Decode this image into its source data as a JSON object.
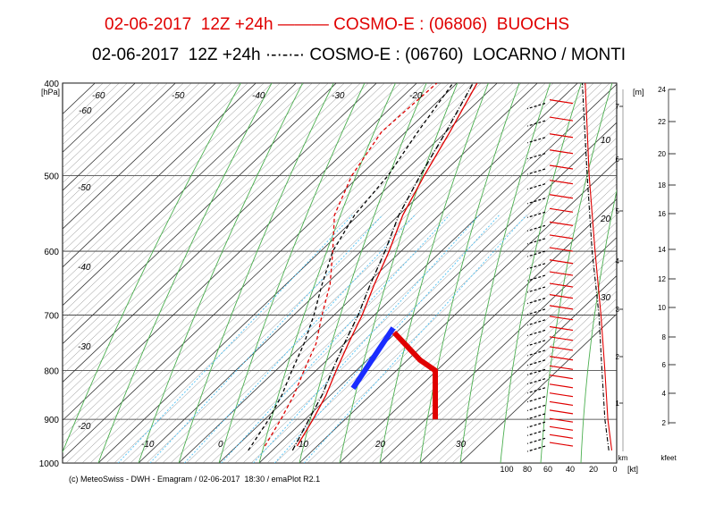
{
  "titles": {
    "line1": "02-06-2017  12Z +24h ——— COSMO-E : (06806)  BUOCHS",
    "line2": "02-06-2017  12Z +24h ·-·-·-· COSMO-E : (06760)  LOCARNO / MONTI"
  },
  "footer": "(c) MeteoSwiss - DWH - Emagram / 02-06-2017  18:30 / emaPlot R2.1",
  "colors": {
    "buochs": "#e00000",
    "locarno": "#000000",
    "dry_adiabat": "#4caf50",
    "mixing_ratio": "#4fc3f7",
    "isotherm": "#666666",
    "blue_arrow": "#1a2cff"
  },
  "chart_data": {
    "type": "line",
    "title": "Emagram",
    "y_axis": {
      "unit": "[hPa]",
      "scale": "log",
      "range": [
        1000,
        400
      ],
      "ticks": [
        "400",
        "500",
        "600",
        "700",
        "800",
        "900",
        "1000"
      ]
    },
    "x_axis": {
      "temperature_labels": [
        "-60",
        "-60",
        "-50",
        "-40",
        "-30",
        "-20",
        "-50",
        "-40",
        "-30",
        "-20",
        "-10",
        "0",
        "10",
        "20",
        "30",
        "10",
        "20",
        "30"
      ],
      "wind_unit": "[kt]",
      "wind_ticks": [
        "100",
        "80",
        "60",
        "40",
        "20",
        "0"
      ]
    },
    "height_km": {
      "unit": "[m]",
      "axis_label": "km",
      "ticks": [
        "1",
        "2",
        "3",
        "4",
        "5",
        "6",
        "7"
      ]
    },
    "height_kfeet": {
      "unit": "kfeet",
      "ticks": [
        "2",
        "4",
        "6",
        "8",
        "10",
        "12",
        "14",
        "16",
        "18",
        "20",
        "22",
        "24"
      ]
    },
    "series": [
      {
        "name": "BUOCHS",
        "kind": "temperature",
        "points": [
          [
            960,
            15
          ],
          [
            900,
            12
          ],
          [
            850,
            9
          ],
          [
            800,
            5
          ],
          [
            750,
            1
          ],
          [
            700,
            -3
          ],
          [
            650,
            -8
          ],
          [
            600,
            -13
          ],
          [
            550,
            -19
          ],
          [
            500,
            -24
          ],
          [
            450,
            -29
          ],
          [
            400,
            -35
          ]
        ]
      },
      {
        "name": "BUOCHS",
        "kind": "dewpoint",
        "points": [
          [
            960,
            7
          ],
          [
            900,
            4
          ],
          [
            850,
            1
          ],
          [
            800,
            -3
          ],
          [
            750,
            -7
          ],
          [
            700,
            -13
          ],
          [
            650,
            -19
          ],
          [
            600,
            -27
          ],
          [
            550,
            -36
          ],
          [
            500,
            -42
          ],
          [
            450,
            -46
          ],
          [
            400,
            -45
          ]
        ]
      },
      {
        "name": "LOCARNO / MONTI",
        "kind": "temperature",
        "points": [
          [
            970,
            15
          ],
          [
            900,
            11
          ],
          [
            850,
            8
          ],
          [
            800,
            4
          ],
          [
            750,
            0
          ],
          [
            700,
            -4
          ],
          [
            650,
            -9
          ],
          [
            600,
            -14
          ],
          [
            550,
            -20
          ],
          [
            500,
            -25
          ],
          [
            450,
            -30
          ],
          [
            400,
            -36
          ]
        ]
      },
      {
        "name": "LOCARNO / MONTI",
        "kind": "dewpoint",
        "points": [
          [
            970,
            4
          ],
          [
            900,
            1
          ],
          [
            850,
            -2
          ],
          [
            800,
            -6
          ],
          [
            750,
            -10
          ],
          [
            700,
            -15
          ],
          [
            650,
            -21
          ],
          [
            600,
            -27
          ],
          [
            550,
            -31
          ],
          [
            500,
            -33
          ],
          [
            450,
            -37
          ],
          [
            400,
            -41
          ]
        ]
      },
      {
        "name": "LOCARNO / MONTI",
        "kind": "wind_speed",
        "points": [
          [
            970,
            8
          ],
          [
            900,
            12
          ],
          [
            800,
            15
          ],
          [
            700,
            18
          ],
          [
            600,
            25
          ],
          [
            500,
            30
          ],
          [
            400,
            35
          ]
        ]
      },
      {
        "name": "BUOCHS",
        "kind": "wind_speed",
        "points": [
          [
            970,
            5
          ],
          [
            900,
            9
          ],
          [
            800,
            12
          ],
          [
            700,
            16
          ],
          [
            600,
            22
          ],
          [
            500,
            28
          ],
          [
            400,
            32
          ]
        ]
      }
    ]
  }
}
